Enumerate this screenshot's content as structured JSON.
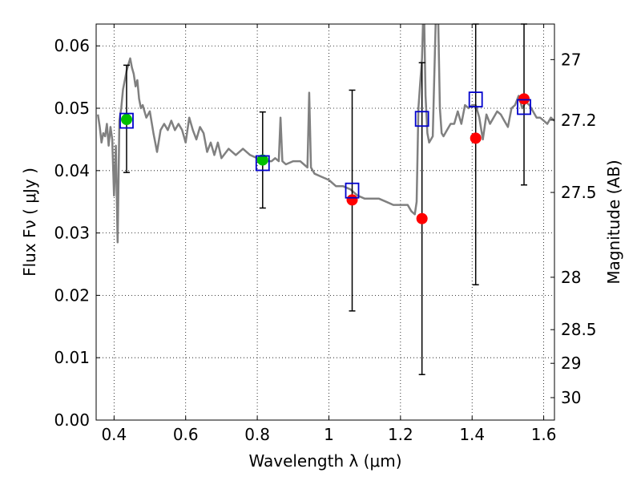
{
  "chart_data": {
    "type": "line",
    "xlabel": "Wavelength  λ (μm)",
    "ylabel": "Flux  Fν  ( μJy )",
    "y2label": "Magnitude (AB)",
    "xlim": [
      0.35,
      1.63
    ],
    "ylim": [
      0.0,
      0.0635
    ],
    "grid": true,
    "x_ticks": [
      0.4,
      0.6,
      0.8,
      1.0,
      1.2,
      1.4,
      1.6
    ],
    "x_tick_labels": [
      "0.4",
      "0.6",
      "0.8",
      "1",
      "1.2",
      "1.4",
      "1.6"
    ],
    "y_ticks": [
      0.0,
      0.01,
      0.02,
      0.03,
      0.04,
      0.05,
      0.06
    ],
    "y_tick_labels": [
      "0.00",
      "0.01",
      "0.02",
      "0.03",
      "0.04",
      "0.05",
      "0.06"
    ],
    "right_axis_ticks": [
      {
        "label": "27",
        "flux": 0.0578
      },
      {
        "label": "27.2",
        "flux": 0.0481
      },
      {
        "label": "27.5",
        "flux": 0.0365
      },
      {
        "label": "28",
        "flux": 0.0229
      },
      {
        "label": "28.5",
        "flux": 0.0145
      },
      {
        "label": "29",
        "flux": 0.0091
      },
      {
        "label": "30",
        "flux": 0.0036
      }
    ],
    "spectrum": {
      "color": "#808080",
      "x": [
        0.355,
        0.36,
        0.365,
        0.37,
        0.375,
        0.38,
        0.385,
        0.39,
        0.395,
        0.4,
        0.405,
        0.41,
        0.415,
        0.42,
        0.425,
        0.43,
        0.435,
        0.44,
        0.445,
        0.45,
        0.455,
        0.46,
        0.465,
        0.47,
        0.475,
        0.48,
        0.49,
        0.5,
        0.51,
        0.52,
        0.53,
        0.54,
        0.55,
        0.56,
        0.57,
        0.58,
        0.59,
        0.6,
        0.61,
        0.62,
        0.63,
        0.64,
        0.65,
        0.66,
        0.67,
        0.68,
        0.69,
        0.7,
        0.72,
        0.74,
        0.76,
        0.78,
        0.8,
        0.82,
        0.84,
        0.85,
        0.86,
        0.865,
        0.87,
        0.88,
        0.9,
        0.92,
        0.93,
        0.94,
        0.945,
        0.95,
        0.96,
        0.98,
        1.0,
        1.02,
        1.04,
        1.06,
        1.08,
        1.1,
        1.12,
        1.14,
        1.16,
        1.18,
        1.2,
        1.22,
        1.23,
        1.24,
        1.245,
        1.25,
        1.255,
        1.26,
        1.265,
        1.27,
        1.275,
        1.28,
        1.29,
        1.3,
        1.305,
        1.31,
        1.315,
        1.32,
        1.33,
        1.34,
        1.35,
        1.36,
        1.37,
        1.38,
        1.39,
        1.4,
        1.41,
        1.42,
        1.43,
        1.44,
        1.45,
        1.46,
        1.47,
        1.48,
        1.49,
        1.5,
        1.51,
        1.52,
        1.53,
        1.54,
        1.55,
        1.56,
        1.57,
        1.58,
        1.59,
        1.6,
        1.61,
        1.62,
        1.63
      ],
      "y": [
        0.049,
        0.047,
        0.0445,
        0.046,
        0.0455,
        0.0475,
        0.044,
        0.047,
        0.045,
        0.036,
        0.044,
        0.0285,
        0.048,
        0.05,
        0.053,
        0.0545,
        0.056,
        0.057,
        0.058,
        0.0565,
        0.0555,
        0.0535,
        0.0545,
        0.0515,
        0.05,
        0.0505,
        0.0485,
        0.0495,
        0.046,
        0.043,
        0.0465,
        0.0475,
        0.0465,
        0.048,
        0.0465,
        0.0475,
        0.0465,
        0.0445,
        0.0485,
        0.0465,
        0.045,
        0.047,
        0.046,
        0.043,
        0.0445,
        0.0425,
        0.0445,
        0.042,
        0.0435,
        0.0425,
        0.0435,
        0.0425,
        0.042,
        0.0415,
        0.0415,
        0.042,
        0.0415,
        0.0485,
        0.0415,
        0.041,
        0.0415,
        0.0415,
        0.041,
        0.0405,
        0.0525,
        0.0405,
        0.0395,
        0.039,
        0.0385,
        0.0375,
        0.0375,
        0.037,
        0.036,
        0.0355,
        0.0355,
        0.0355,
        0.035,
        0.0345,
        0.0345,
        0.0345,
        0.0335,
        0.033,
        0.035,
        0.05,
        0.054,
        0.058,
        0.068,
        0.052,
        0.046,
        0.0445,
        0.0455,
        0.0675,
        0.065,
        0.05,
        0.046,
        0.0455,
        0.0465,
        0.0475,
        0.0475,
        0.0495,
        0.0475,
        0.0505,
        0.05,
        0.0505,
        0.0505,
        0.0485,
        0.045,
        0.049,
        0.0475,
        0.0485,
        0.0495,
        0.049,
        0.048,
        0.047,
        0.05,
        0.0505,
        0.052,
        0.05,
        0.051,
        0.0505,
        0.0495,
        0.0485,
        0.0485,
        0.048,
        0.0475,
        0.0485,
        0.048
      ]
    },
    "series": [
      {
        "name": "",
        "marker": "circle",
        "color": "#00c000",
        "points": [
          {
            "x": 0.435,
            "y": 0.0482,
            "err_low": 0.0397,
            "err_high": 0.0569
          },
          {
            "x": 0.815,
            "y": 0.0417,
            "err_low": 0.034,
            "err_high": 0.0494
          }
        ]
      },
      {
        "name": "",
        "marker": "circle",
        "color": "#ff0000",
        "points": [
          {
            "x": 1.065,
            "y": 0.0353,
            "err_low": 0.0175,
            "err_high": 0.0529
          },
          {
            "x": 1.26,
            "y": 0.0323,
            "err_low": 0.0073,
            "err_high": 0.0573
          },
          {
            "x": 1.41,
            "y": 0.0452,
            "err_low": 0.0217,
            "err_high": 0.0635
          },
          {
            "x": 1.545,
            "y": 0.0515,
            "err_low": 0.0377,
            "err_high": 0.0635
          }
        ]
      },
      {
        "name": "",
        "marker": "open-square",
        "color": "#0000cc",
        "points": [
          {
            "x": 0.435,
            "y": 0.048
          },
          {
            "x": 0.815,
            "y": 0.0412
          },
          {
            "x": 1.065,
            "y": 0.0368
          },
          {
            "x": 1.26,
            "y": 0.0483
          },
          {
            "x": 1.41,
            "y": 0.0514
          },
          {
            "x": 1.545,
            "y": 0.0502
          }
        ]
      }
    ]
  }
}
